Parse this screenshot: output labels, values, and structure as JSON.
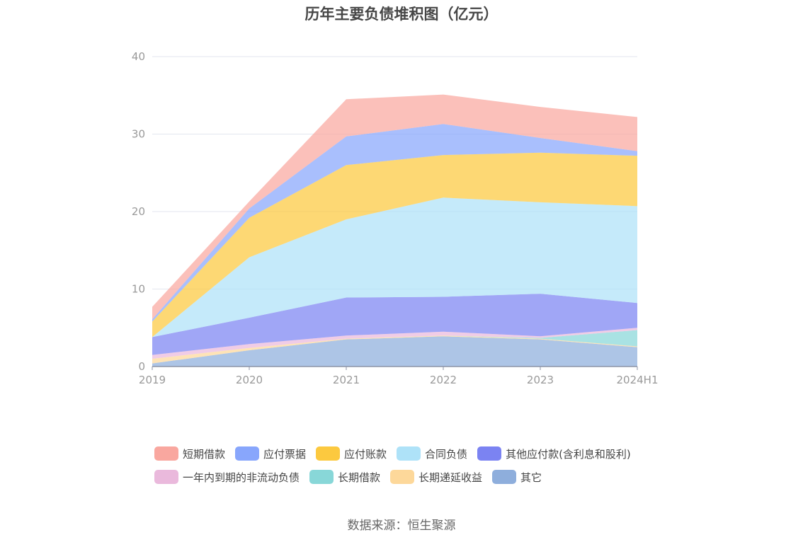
{
  "title": "历年主要负债堆积图（亿元）",
  "source": "数据来源：恒生聚源",
  "chart_data": {
    "type": "area",
    "stacked": true,
    "categories": [
      "2019",
      "2020",
      "2021",
      "2022",
      "2023",
      "2024H1"
    ],
    "ylim": [
      0,
      40
    ],
    "yticks": [
      "0",
      "10",
      "20",
      "30",
      "40"
    ],
    "grid": true,
    "legend_position": "bottom",
    "series": [
      {
        "name": "其它",
        "color": "#8eaedc",
        "values": [
          0.4,
          2.1,
          3.5,
          3.9,
          3.5,
          2.5
        ]
      },
      {
        "name": "长期递延收益",
        "color": "#fdd89a",
        "values": [
          0.6,
          0.3,
          0.1,
          0.1,
          0.1,
          0.1
        ]
      },
      {
        "name": "长期借款",
        "color": "#88d7d8",
        "values": [
          0,
          0,
          0,
          0,
          0.1,
          2.1
        ]
      },
      {
        "name": "一年内到期的非流动负债",
        "color": "#eab9dc",
        "values": [
          0.5,
          0.5,
          0.4,
          0.5,
          0.2,
          0.3
        ]
      },
      {
        "name": "其他应付款(含利息和股利)",
        "color": "#7b83f2",
        "values": [
          2.3,
          3.4,
          4.9,
          4.5,
          5.5,
          3.2
        ]
      },
      {
        "name": "合同负债",
        "color": "#aee2f8",
        "values": [
          0,
          7.8,
          10.1,
          12.8,
          11.8,
          12.5
        ]
      },
      {
        "name": "应付账款",
        "color": "#fcc93f",
        "values": [
          2.0,
          5.1,
          7.0,
          5.5,
          6.4,
          6.5
        ]
      },
      {
        "name": "应付票据",
        "color": "#88a6fc",
        "values": [
          0.3,
          1.2,
          3.7,
          4.0,
          1.9,
          0.6
        ]
      },
      {
        "name": "短期借款",
        "color": "#f9a79f",
        "values": [
          1.6,
          0.9,
          4.8,
          3.8,
          4.0,
          4.4
        ]
      }
    ]
  },
  "legend": [
    {
      "name": "短期借款",
      "color": "#f9a79f"
    },
    {
      "name": "应付票据",
      "color": "#88a6fc"
    },
    {
      "name": "应付账款",
      "color": "#fcc93f"
    },
    {
      "name": "合同负债",
      "color": "#aee2f8"
    },
    {
      "name": "其他应付款(含利息和股利)",
      "color": "#7b83f2"
    },
    {
      "name": "一年内到期的非流动负债",
      "color": "#eab9dc"
    },
    {
      "name": "长期借款",
      "color": "#88d7d8"
    },
    {
      "name": "长期递延收益",
      "color": "#fdd89a"
    },
    {
      "name": "其它",
      "color": "#8eaedc"
    }
  ]
}
